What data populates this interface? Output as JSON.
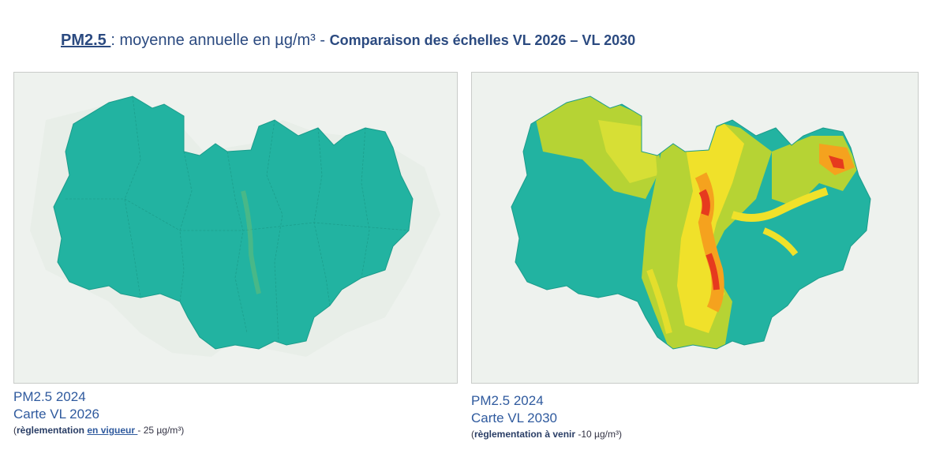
{
  "title": {
    "pollutant": "PM2.5 ",
    "separator": ":",
    "description": " moyenne annuelle en µg/m³",
    "dash": " - ",
    "comparison": "Comparaison des échelles VL 2026 – VL 2030"
  },
  "maps": [
    {
      "line1": "PM2.5 2024",
      "line2": "Carte VL 2026",
      "note_open": "(",
      "note_bold": "règlementation ",
      "note_underlined": "en vigueur ",
      "note_rest": "- 25 µg/m³)"
    },
    {
      "line1": "PM2.5 2024",
      "line2": "Carte VL 2030",
      "note_open": "(",
      "note_bold": "règlementation à venir ",
      "note_underlined": "",
      "note_rest": "-10 µg/m³)"
    }
  ],
  "colors": {
    "region_base": "#1fb5a0",
    "yellow_green": "#b6d334",
    "yellow": "#f0e12a",
    "orange": "#f5a21e",
    "red": "#e63a1e",
    "background": "#eef2ee"
  }
}
